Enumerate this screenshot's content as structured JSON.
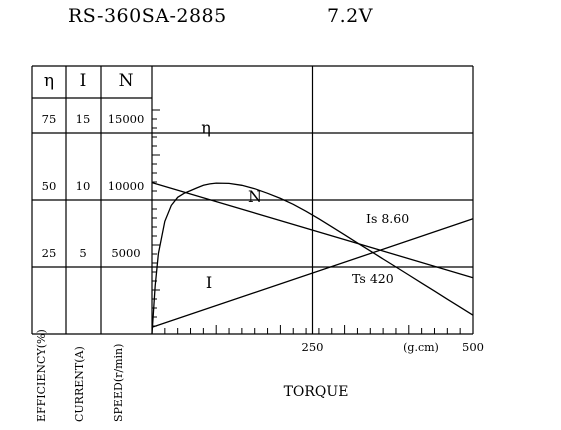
{
  "header": {
    "model": "RS-360SA-2885",
    "voltage": "7.2V"
  },
  "chart_data": {
    "type": "line",
    "title": "RS-360SA-2885",
    "subtitle": "7.2V",
    "xlabel": "TORQUE",
    "x_unit": "(g.cm)",
    "xlim": [
      0,
      500
    ],
    "x_ticks": [
      "250",
      "500"
    ],
    "grid": true,
    "axes": [
      {
        "symbol": "η",
        "label": "EFFICIENCY(%)",
        "ticks": [
          "25",
          "50",
          "75"
        ],
        "range": [
          0,
          100
        ]
      },
      {
        "symbol": "I",
        "label": "CURRENT(A)",
        "ticks": [
          "5",
          "10",
          "15"
        ],
        "range": [
          0,
          20
        ]
      },
      {
        "symbol": "N",
        "label": "SPEED(r/min)",
        "ticks": [
          "5000",
          "10000",
          "15000"
        ],
        "range": [
          0,
          20000
        ]
      }
    ],
    "series": [
      {
        "name": "η",
        "axis": "η",
        "x": [
          0,
          5,
          10,
          20,
          30,
          40,
          50,
          60,
          70,
          80,
          90,
          100,
          120,
          140,
          160,
          180,
          200,
          220,
          240,
          260,
          280,
          300,
          320,
          340,
          360,
          380,
          400,
          420,
          440,
          460,
          480,
          500
        ],
        "y": [
          0,
          18,
          30,
          42,
          48,
          51,
          52.5,
          53.5,
          54.5,
          55.5,
          56,
          56.3,
          56.2,
          55.5,
          54.2,
          52.5,
          50.6,
          48.4,
          45.8,
          43.0,
          40.0,
          37.0,
          34.0,
          31.0,
          28.0,
          25.0,
          22.0,
          19.0,
          16.0,
          13.0,
          10.0,
          7.0
        ]
      },
      {
        "name": "N",
        "axis": "N",
        "x": [
          0,
          500
        ],
        "y": [
          11300,
          4200
        ]
      },
      {
        "name": "I",
        "axis": "I",
        "x": [
          0,
          500
        ],
        "y": [
          0.5,
          8.6
        ]
      }
    ],
    "annotations": [
      {
        "text": "Is 8.60"
      },
      {
        "text": "Ts 420"
      }
    ]
  }
}
